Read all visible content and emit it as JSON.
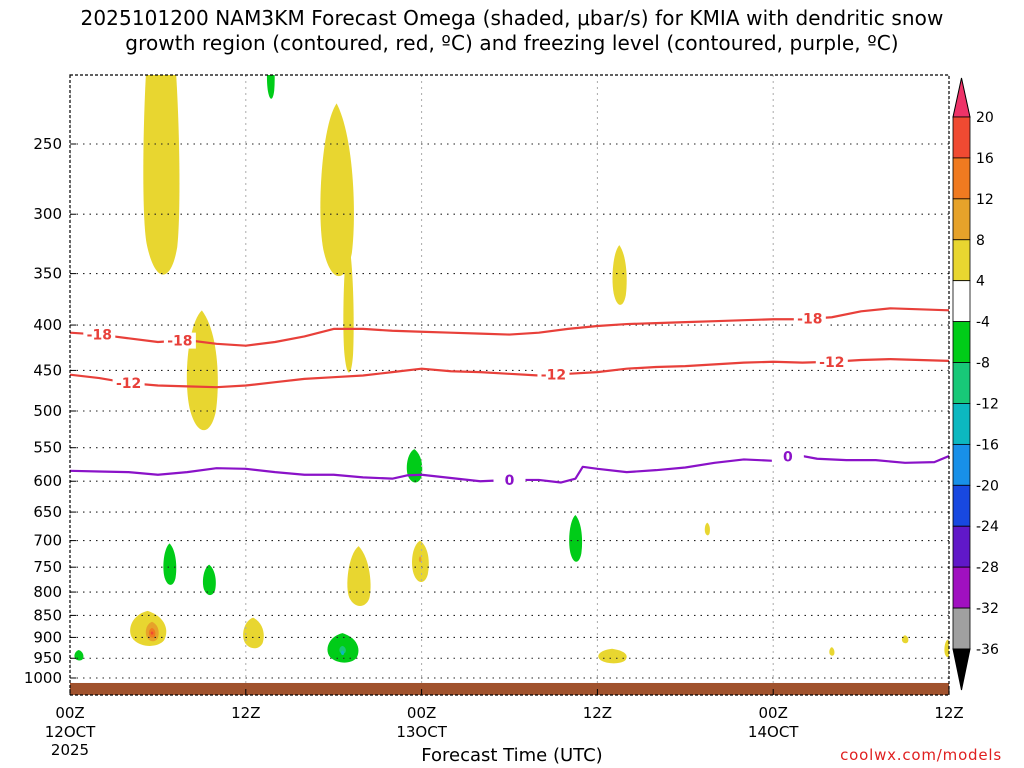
{
  "title_line1": "2025101200 NAM3KM Forecast Omega (shaded, μbar/s) for KMIA with dendritic snow",
  "title_line2": "growth region (contoured, red, ºC) and freezing level (contoured, purple, ºC)",
  "credit": "coolwx.com/models",
  "colors": {
    "dgz": "#e8403a",
    "freezing": "#8a12c8",
    "ground": "#a0522d"
  },
  "chart_data": {
    "type": "heatmap",
    "xlabel": "Forecast Time (UTC)",
    "xlim": [
      0,
      60
    ],
    "ylim": [
      200,
      1050
    ],
    "yscale": "log-pressure",
    "grid": true,
    "x_ticks": [
      {
        "hour": 0,
        "label": "00Z",
        "sub": "12OCT",
        "sub2": "2025"
      },
      {
        "hour": 12,
        "label": "12Z",
        "sub": "",
        "sub2": ""
      },
      {
        "hour": 24,
        "label": "00Z",
        "sub": "13OCT",
        "sub2": ""
      },
      {
        "hour": 36,
        "label": "12Z",
        "sub": "",
        "sub2": ""
      },
      {
        "hour": 48,
        "label": "00Z",
        "sub": "14OCT",
        "sub2": ""
      },
      {
        "hour": 60,
        "label": "12Z",
        "sub": "",
        "sub2": ""
      }
    ],
    "y_ticks": [
      250,
      300,
      350,
      400,
      450,
      500,
      550,
      600,
      650,
      700,
      750,
      800,
      850,
      900,
      950,
      1000
    ],
    "colorbar": {
      "labels": [
        "20",
        "16",
        "12",
        "8",
        "4",
        "-4",
        "-8",
        "-12",
        "-16",
        "-20",
        "-24",
        "-28",
        "-32",
        "-36"
      ],
      "colors": [
        "#ee3368",
        "#f04a32",
        "#f07a20",
        "#e6a22a",
        "#e8d630",
        "#ffffff",
        "#00cc18",
        "#18c878",
        "#0cb8c0",
        "#1890e8",
        "#1848e0",
        "#6018c8",
        "#a010c0",
        "#a0a0a0",
        "#000000"
      ]
    },
    "contours": [
      {
        "name": "-18",
        "kind": "dgz",
        "labels": [
          {
            "hour": 2,
            "text": "-18"
          },
          {
            "hour": 7.5,
            "text": "-18"
          },
          {
            "hour": 50.5,
            "text": "-18"
          }
        ],
        "points": [
          [
            0,
            408
          ],
          [
            2,
            410
          ],
          [
            4,
            414
          ],
          [
            6,
            418
          ],
          [
            8,
            416
          ],
          [
            10,
            420
          ],
          [
            12,
            422
          ],
          [
            14,
            418
          ],
          [
            16,
            412
          ],
          [
            18,
            404
          ],
          [
            20,
            404
          ],
          [
            22,
            406
          ],
          [
            24,
            407
          ],
          [
            26,
            408
          ],
          [
            28,
            409
          ],
          [
            30,
            410
          ],
          [
            32,
            408
          ],
          [
            34,
            404
          ],
          [
            36,
            401
          ],
          [
            38,
            399
          ],
          [
            40,
            398
          ],
          [
            42,
            397
          ],
          [
            44,
            396
          ],
          [
            46,
            395
          ],
          [
            48,
            394
          ],
          [
            50,
            394
          ],
          [
            52,
            392
          ],
          [
            54,
            386
          ],
          [
            56,
            383
          ],
          [
            58,
            384
          ],
          [
            60,
            385
          ]
        ]
      },
      {
        "name": "-12",
        "kind": "dgz",
        "labels": [
          {
            "hour": 4,
            "text": "-12"
          },
          {
            "hour": 33,
            "text": "-12"
          },
          {
            "hour": 52,
            "text": "-12"
          }
        ],
        "points": [
          [
            0,
            455
          ],
          [
            2,
            459
          ],
          [
            4,
            465
          ],
          [
            6,
            468
          ],
          [
            8,
            469
          ],
          [
            10,
            470
          ],
          [
            12,
            468
          ],
          [
            14,
            464
          ],
          [
            16,
            460
          ],
          [
            18,
            458
          ],
          [
            20,
            456
          ],
          [
            22,
            452
          ],
          [
            24,
            448
          ],
          [
            26,
            451
          ],
          [
            28,
            452
          ],
          [
            30,
            454
          ],
          [
            32,
            456
          ],
          [
            34,
            454
          ],
          [
            36,
            452
          ],
          [
            38,
            448
          ],
          [
            40,
            446
          ],
          [
            42,
            445
          ],
          [
            44,
            443
          ],
          [
            46,
            441
          ],
          [
            48,
            440
          ],
          [
            50,
            441
          ],
          [
            52,
            440
          ],
          [
            54,
            438
          ],
          [
            56,
            437
          ],
          [
            58,
            438
          ],
          [
            60,
            439
          ]
        ]
      },
      {
        "name": "0",
        "kind": "freezing",
        "labels": [
          {
            "hour": 30,
            "text": "0"
          },
          {
            "hour": 49,
            "text": "0"
          }
        ],
        "points": [
          [
            0,
            584
          ],
          [
            2,
            585
          ],
          [
            4,
            586
          ],
          [
            6,
            590
          ],
          [
            8,
            586
          ],
          [
            10,
            580
          ],
          [
            12,
            581
          ],
          [
            14,
            586
          ],
          [
            16,
            590
          ],
          [
            18,
            590
          ],
          [
            20,
            594
          ],
          [
            22,
            596
          ],
          [
            23,
            591
          ],
          [
            24,
            590
          ],
          [
            26,
            595
          ],
          [
            28,
            600
          ],
          [
            30,
            598
          ],
          [
            32,
            598
          ],
          [
            33.5,
            602
          ],
          [
            34.5,
            596
          ],
          [
            35,
            578
          ],
          [
            36,
            581
          ],
          [
            38,
            586
          ],
          [
            40,
            583
          ],
          [
            42,
            579
          ],
          [
            44,
            572
          ],
          [
            46,
            567
          ],
          [
            48,
            569
          ],
          [
            49.5,
            560
          ],
          [
            51,
            566
          ],
          [
            53,
            568
          ],
          [
            55,
            568
          ],
          [
            57,
            572
          ],
          [
            59,
            571
          ],
          [
            60,
            562
          ]
        ]
      }
    ],
    "shaded_regions": [
      {
        "value": 4,
        "hour": 6.2,
        "p": 290,
        "dh": 1.4,
        "dp_top": 200,
        "dp_bot": 70
      },
      {
        "value": 4,
        "hour": 9.0,
        "p": 460,
        "dh": 1.2,
        "dp_top": 75,
        "dp_bot": 75
      },
      {
        "value": -8,
        "hour": 13.7,
        "p": 210,
        "dh": 0.3,
        "dp_top": 12,
        "dp_bot": 14
      },
      {
        "value": 4,
        "hour": 18.2,
        "p": 300,
        "dh": 1.3,
        "dp_top": 75,
        "dp_bot": 60
      },
      {
        "value": 4,
        "hour": 19.0,
        "p": 400,
        "dh": 0.4,
        "dp_top": 80,
        "dp_bot": 60
      },
      {
        "value": -8,
        "hour": 23.5,
        "p": 580,
        "dh": 0.6,
        "dp_top": 28,
        "dp_bot": 25
      },
      {
        "value": 4,
        "hour": 37.5,
        "p": 355,
        "dh": 0.55,
        "dp_top": 30,
        "dp_bot": 28
      },
      {
        "value": 4,
        "hour": 43.5,
        "p": 680,
        "dh": 0.2,
        "dp_top": 12,
        "dp_bot": 12
      },
      {
        "value": -8,
        "hour": 34.5,
        "p": 700,
        "dh": 0.5,
        "dp_top": 45,
        "dp_bot": 45
      },
      {
        "value": -8,
        "hour": 6.8,
        "p": 750,
        "dh": 0.5,
        "dp_top": 45,
        "dp_bot": 40
      },
      {
        "value": -8,
        "hour": 9.5,
        "p": 780,
        "dh": 0.5,
        "dp_top": 35,
        "dp_bot": 30
      },
      {
        "value": 4,
        "hour": 19.7,
        "p": 790,
        "dh": 0.9,
        "dp_top": 80,
        "dp_bot": 45
      },
      {
        "value": 4,
        "hour": 23.9,
        "p": 740,
        "dh": 0.65,
        "dp_top": 40,
        "dp_bot": 45
      },
      {
        "value": 8,
        "hour": 23.9,
        "p": 735,
        "dh": 0.1,
        "dp_top": 6,
        "dp_bot": 6
      },
      {
        "value": 4,
        "hour": 5.3,
        "p": 885,
        "dh": 1.4,
        "dp_top": 45,
        "dp_bot": 40
      },
      {
        "value": 8,
        "hour": 5.6,
        "p": 888,
        "dh": 0.5,
        "dp_top": 24,
        "dp_bot": 24
      },
      {
        "value": 12,
        "hour": 5.6,
        "p": 890,
        "dh": 0.25,
        "dp_top": 12,
        "dp_bot": 12
      },
      {
        "value": 16,
        "hour": 5.6,
        "p": 890,
        "dh": 0.1,
        "dp_top": 4,
        "dp_bot": 4
      },
      {
        "value": 4,
        "hour": 12.5,
        "p": 895,
        "dh": 0.8,
        "dp_top": 40,
        "dp_bot": 35
      },
      {
        "value": -8,
        "hour": 18.6,
        "p": 930,
        "dh": 1.2,
        "dp_top": 40,
        "dp_bot": 35
      },
      {
        "value": -12,
        "hour": 18.6,
        "p": 930,
        "dh": 0.25,
        "dp_top": 10,
        "dp_bot": 10
      },
      {
        "value": -16,
        "hour": 18.6,
        "p": 937,
        "dh": 0.12,
        "dp_top": 6,
        "dp_bot": 6
      },
      {
        "value": -8,
        "hour": 0.6,
        "p": 945,
        "dh": 0.35,
        "dp_top": 15,
        "dp_bot": 12
      },
      {
        "value": 4,
        "hour": 37.0,
        "p": 945,
        "dh": 1.1,
        "dp_top": 18,
        "dp_bot": 20
      },
      {
        "value": 4,
        "hour": 52.0,
        "p": 935,
        "dh": 0.2,
        "dp_top": 12,
        "dp_bot": 10
      },
      {
        "value": 4,
        "hour": 57.0,
        "p": 905,
        "dh": 0.25,
        "dp_top": 10,
        "dp_bot": 10
      },
      {
        "value": 4,
        "hour": 59.9,
        "p": 930,
        "dh": 0.25,
        "dp_top": 25,
        "dp_bot": 20
      }
    ],
    "ground_pressure": 1013
  }
}
